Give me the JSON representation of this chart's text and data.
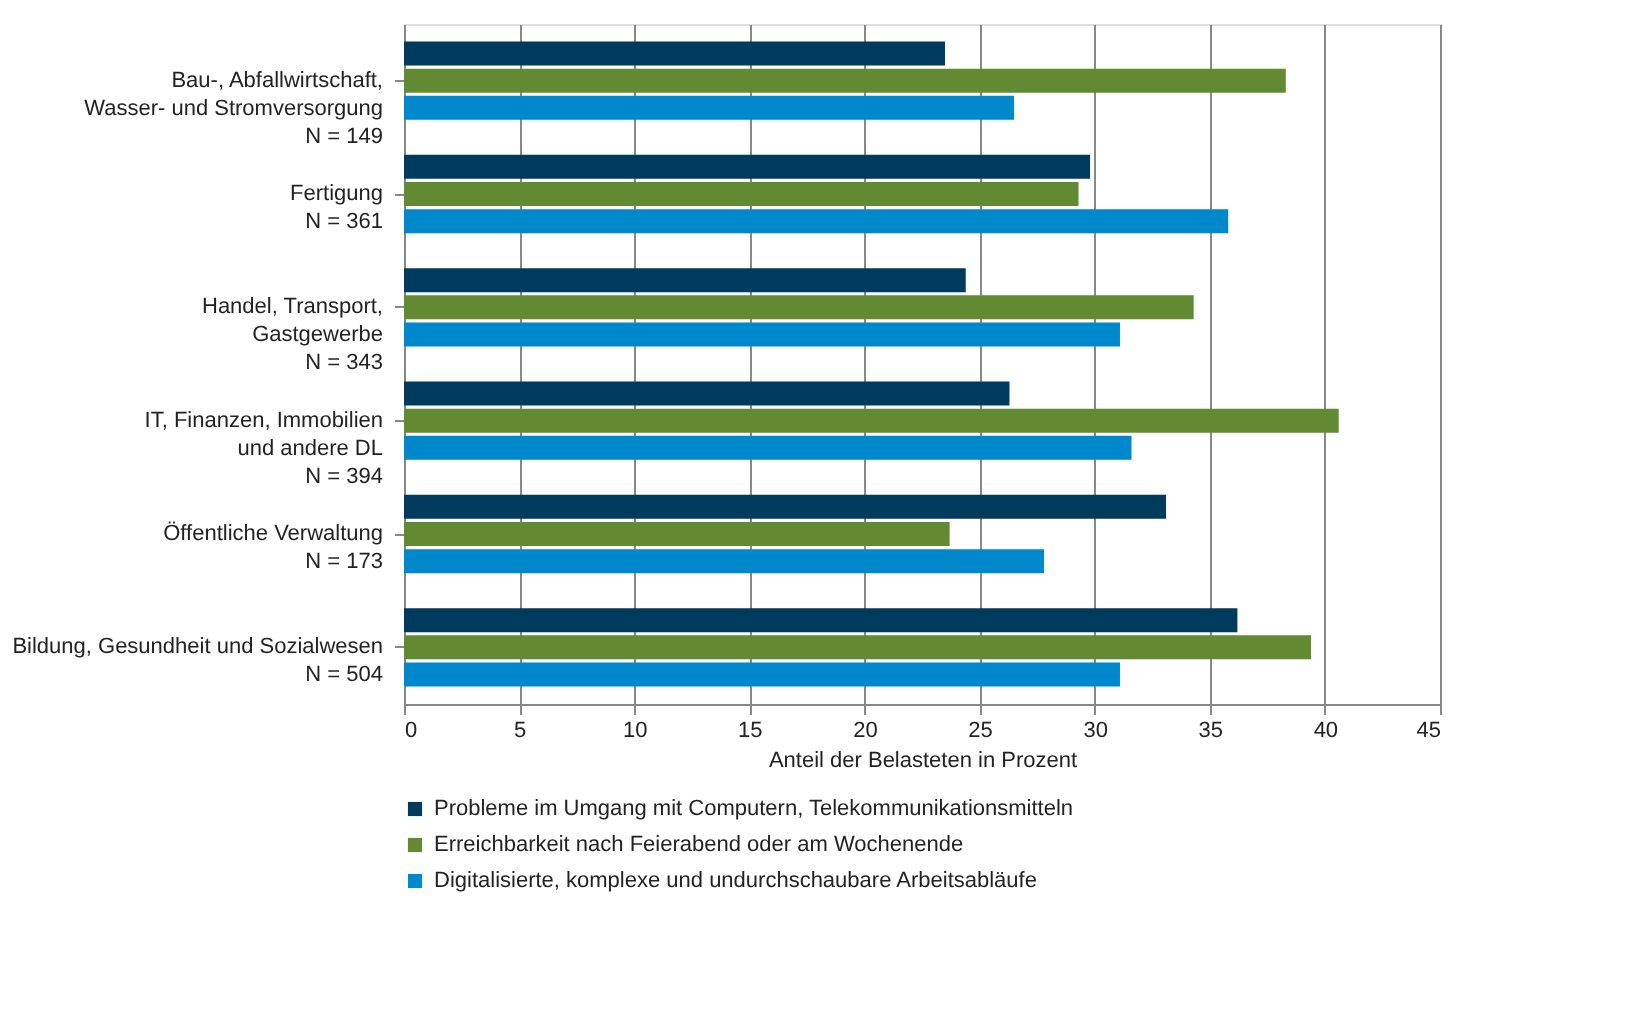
{
  "chart_data": {
    "type": "bar",
    "orientation": "horizontal",
    "xlabel": "Anteil der Belasteten in Prozent",
    "categories": [
      "Bau-, Abfallwirtschaft,\nWasser- und Stromversorgung\nN = 149",
      "Fertigung\nN = 361",
      "Handel, Transport,\nGastgewerbe\nN = 343",
      "IT, Finanzen, Immobilien\nund andere DL\nN = 394",
      "Öffentliche Verwaltung\nN = 173",
      "Bildung, Gesundheit und Sozialwesen\nN = 504"
    ],
    "series": [
      {
        "name": "Probleme im Umgang mit Computern, Telekommunikationsmitteln",
        "color": "#003a5c",
        "values": [
          23.5,
          29.8,
          24.4,
          26.3,
          33.1,
          36.2
        ]
      },
      {
        "name": "Erreichbarkeit nach Feierabend oder am Wochenende",
        "color": "#628a32",
        "values": [
          38.3,
          29.3,
          34.3,
          40.6,
          23.7,
          39.4
        ]
      },
      {
        "name": "Digitalisierte, komplexe und undurchschaubare Arbeitsabläufe",
        "color": "#0088cc",
        "values": [
          26.5,
          35.8,
          31.1,
          31.6,
          27.8,
          31.1
        ]
      }
    ],
    "xlim": [
      0,
      45
    ],
    "xticks": [
      0,
      5,
      10,
      15,
      20,
      25,
      30,
      35,
      40,
      45
    ],
    "grid": "x",
    "legend": "bottom"
  }
}
